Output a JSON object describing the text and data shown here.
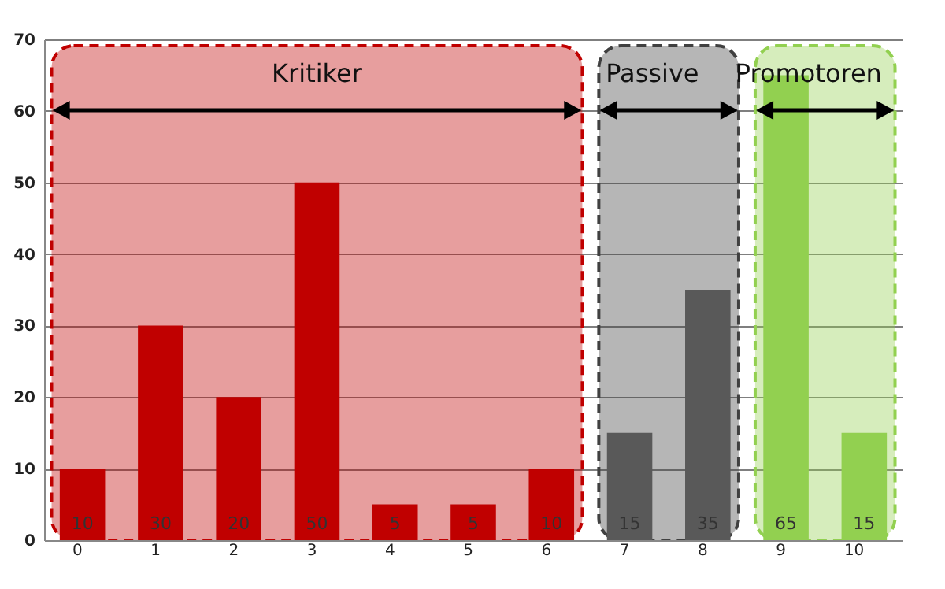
{
  "chart_data": {
    "type": "bar",
    "categories": [
      "0",
      "1",
      "2",
      "3",
      "4",
      "5",
      "6",
      "7",
      "8",
      "9",
      "10"
    ],
    "values": [
      10,
      30,
      20,
      50,
      5,
      5,
      10,
      15,
      35,
      65,
      15
    ],
    "colors": [
      "#c00000",
      "#c00000",
      "#c00000",
      "#c00000",
      "#c00000",
      "#c00000",
      "#c00000",
      "#595959",
      "#595959",
      "#92d050",
      "#92d050"
    ],
    "ylim": [
      0,
      70
    ],
    "yticks": [
      0,
      10,
      20,
      30,
      40,
      50,
      60,
      70
    ],
    "grid": "y",
    "data_labels": true,
    "bands": [
      {
        "axis": "x",
        "from": "0",
        "to": "6",
        "label": "Kritiker",
        "color": "#c00000"
      },
      {
        "axis": "x",
        "from": "7",
        "to": "8",
        "label": "Passive",
        "color": "#404040"
      },
      {
        "axis": "x",
        "from": "9",
        "to": "10",
        "label": "Promotoren",
        "color": "#92d050"
      }
    ]
  }
}
